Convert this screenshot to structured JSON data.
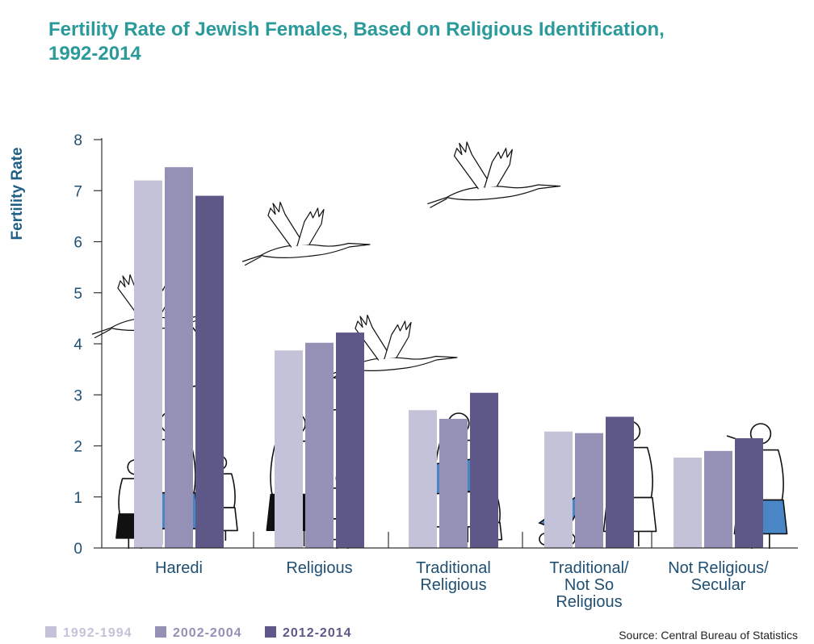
{
  "title_line1": "Fertility Rate of Jewish Females, Based on Religious Identification,",
  "title_line2": "1992-2014",
  "source": "Source: Central Bureau of Statistics",
  "colors": {
    "series1": "#c4c2d8",
    "series2": "#9490b6",
    "series3": "#5e5889",
    "axis": "#333333",
    "text": "#1f4f72",
    "title": "#2a9a9a"
  },
  "chart_data": {
    "type": "bar",
    "title": "Fertility Rate of Jewish Females, Based on Religious Identification, 1992-2014",
    "ylabel": "Fertility Rate",
    "xlabel": "",
    "ylim": [
      0,
      8
    ],
    "yticks": [
      "0",
      "1",
      "2",
      "3",
      "4",
      "5",
      "6",
      "7",
      "8"
    ],
    "categories": [
      [
        "Haredi"
      ],
      [
        "Religious"
      ],
      [
        "Traditional",
        "Religious"
      ],
      [
        "Traditional/",
        "Not So",
        "Religious"
      ],
      [
        "Not Religious/",
        "Secular"
      ]
    ],
    "series": [
      {
        "name": "1992-1994",
        "values": [
          7.2,
          3.87,
          2.7,
          2.28,
          1.77
        ]
      },
      {
        "name": "2002-2004",
        "values": [
          7.46,
          4.02,
          2.53,
          2.25,
          1.9
        ]
      },
      {
        "name": "2012-2014",
        "values": [
          6.9,
          4.22,
          3.04,
          2.57,
          2.15
        ]
      }
    ],
    "grid": false,
    "legend": "bottom-left"
  }
}
